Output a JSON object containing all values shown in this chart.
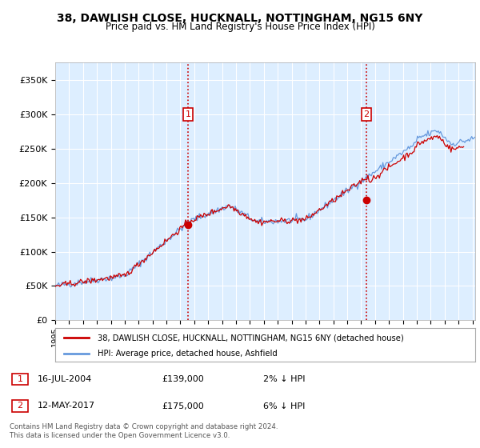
{
  "title": "38, DAWLISH CLOSE, HUCKNALL, NOTTINGHAM, NG15 6NY",
  "subtitle": "Price paid vs. HM Land Registry's House Price Index (HPI)",
  "ytick_vals": [
    0,
    50000,
    100000,
    150000,
    200000,
    250000,
    300000,
    350000
  ],
  "ylim": [
    0,
    375000
  ],
  "xlim_start": 1995.0,
  "xlim_end": 2025.2,
  "sale1_date": 2004.54,
  "sale1_price": 139000,
  "sale2_date": 2017.37,
  "sale2_price": 175000,
  "legend_line1": "38, DAWLISH CLOSE, HUCKNALL, NOTTINGHAM, NG15 6NY (detached house)",
  "legend_line2": "HPI: Average price, detached house, Ashfield",
  "footer": "Contains HM Land Registry data © Crown copyright and database right 2024.\nThis data is licensed under the Open Government Licence v3.0.",
  "line_color_red": "#cc0000",
  "line_color_blue": "#6699dd",
  "bg_color": "#ddeeff",
  "grid_color": "#ffffff",
  "vline_color": "#cc0000",
  "box_color": "#cc0000",
  "title_fontsize": 10,
  "subtitle_fontsize": 9
}
